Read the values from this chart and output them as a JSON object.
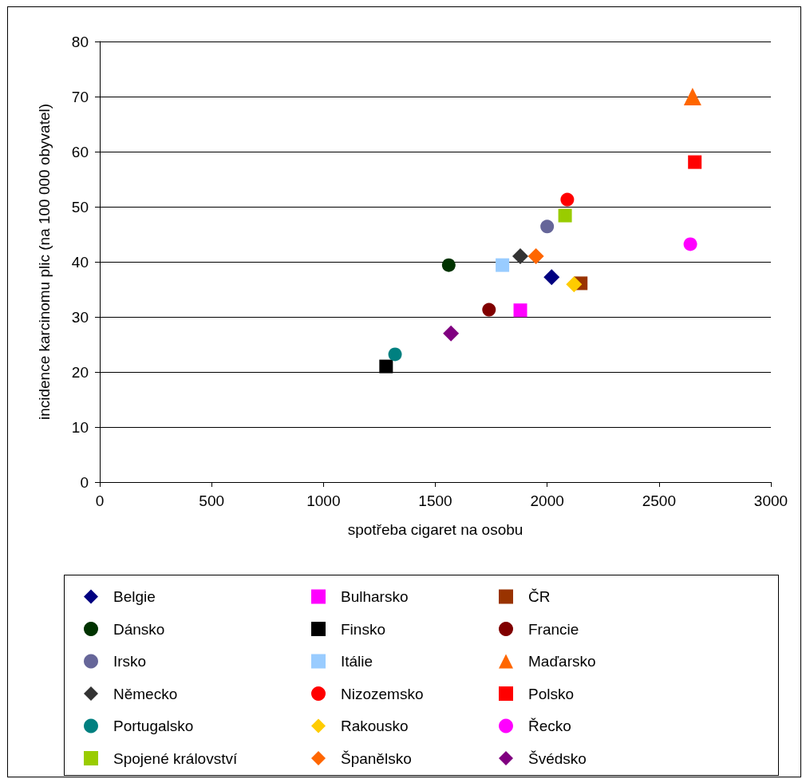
{
  "chart_data": {
    "type": "scatter",
    "xlabel": "spotřeba cigaret na osobu",
    "ylabel": "incidence karcinomu plic (na 100 000 obyvatel)",
    "xlim": [
      0,
      3000
    ],
    "xticks": [
      0,
      500,
      1000,
      1500,
      2000,
      2500,
      3000
    ],
    "ylim": [
      0,
      80
    ],
    "yticks": [
      0,
      10,
      20,
      30,
      40,
      50,
      60,
      70,
      80
    ],
    "grid": "y",
    "legend": "bottom",
    "series": [
      {
        "name": "Belgie",
        "color": "#000080",
        "marker": "diamond",
        "x": [
          2020
        ],
        "values": [
          37.2
        ]
      },
      {
        "name": "Bulharsko",
        "color": "#ff00ff",
        "marker": "square",
        "x": [
          1880
        ],
        "values": [
          31.2
        ]
      },
      {
        "name": "ČR",
        "color": "#993300",
        "marker": "square",
        "x": [
          2150
        ],
        "values": [
          36.1
        ]
      },
      {
        "name": "Dánsko",
        "color": "#003300",
        "marker": "circle",
        "x": [
          1560
        ],
        "values": [
          39.4
        ]
      },
      {
        "name": "Finsko",
        "color": "#000000",
        "marker": "square",
        "x": [
          1280
        ],
        "values": [
          21.0
        ]
      },
      {
        "name": "Francie",
        "color": "#800000",
        "marker": "circle",
        "x": [
          1740
        ],
        "values": [
          31.3
        ]
      },
      {
        "name": "Irsko",
        "color": "#666699",
        "marker": "circle",
        "x": [
          2000
        ],
        "values": [
          46.4
        ]
      },
      {
        "name": "Itálie",
        "color": "#99ccff",
        "marker": "square",
        "x": [
          1800
        ],
        "values": [
          39.4
        ]
      },
      {
        "name": "Maďarsko",
        "color": "#ff6600",
        "marker": "triangle",
        "x": [
          2650
        ],
        "values": [
          70.0
        ]
      },
      {
        "name": "Německo",
        "color": "#333333",
        "marker": "diamond",
        "x": [
          1880
        ],
        "values": [
          41.0
        ]
      },
      {
        "name": "Nizozemsko",
        "color": "#ff0000",
        "marker": "circle",
        "x": [
          2090
        ],
        "values": [
          51.3
        ]
      },
      {
        "name": "Polsko",
        "color": "#ff0000",
        "marker": "square",
        "x": [
          2660
        ],
        "values": [
          58.1
        ]
      },
      {
        "name": "Portugalsko",
        "color": "#008080",
        "marker": "circle",
        "x": [
          1320
        ],
        "values": [
          23.2
        ]
      },
      {
        "name": "Rakousko",
        "color": "#ffcc00",
        "marker": "diamond",
        "x": [
          2120
        ],
        "values": [
          35.9
        ]
      },
      {
        "name": "Řecko",
        "color": "#ff00ff",
        "marker": "circle",
        "x": [
          2640
        ],
        "values": [
          43.2
        ]
      },
      {
        "name": "Spojené království",
        "color": "#99cc00",
        "marker": "square",
        "x": [
          2080
        ],
        "values": [
          48.4
        ]
      },
      {
        "name": "Španělsko",
        "color": "#ff6600",
        "marker": "diamond",
        "x": [
          1950
        ],
        "values": [
          41.0
        ]
      },
      {
        "name": "Švédsko",
        "color": "#800080",
        "marker": "diamond",
        "x": [
          1570
        ],
        "values": [
          27.0
        ]
      }
    ]
  }
}
